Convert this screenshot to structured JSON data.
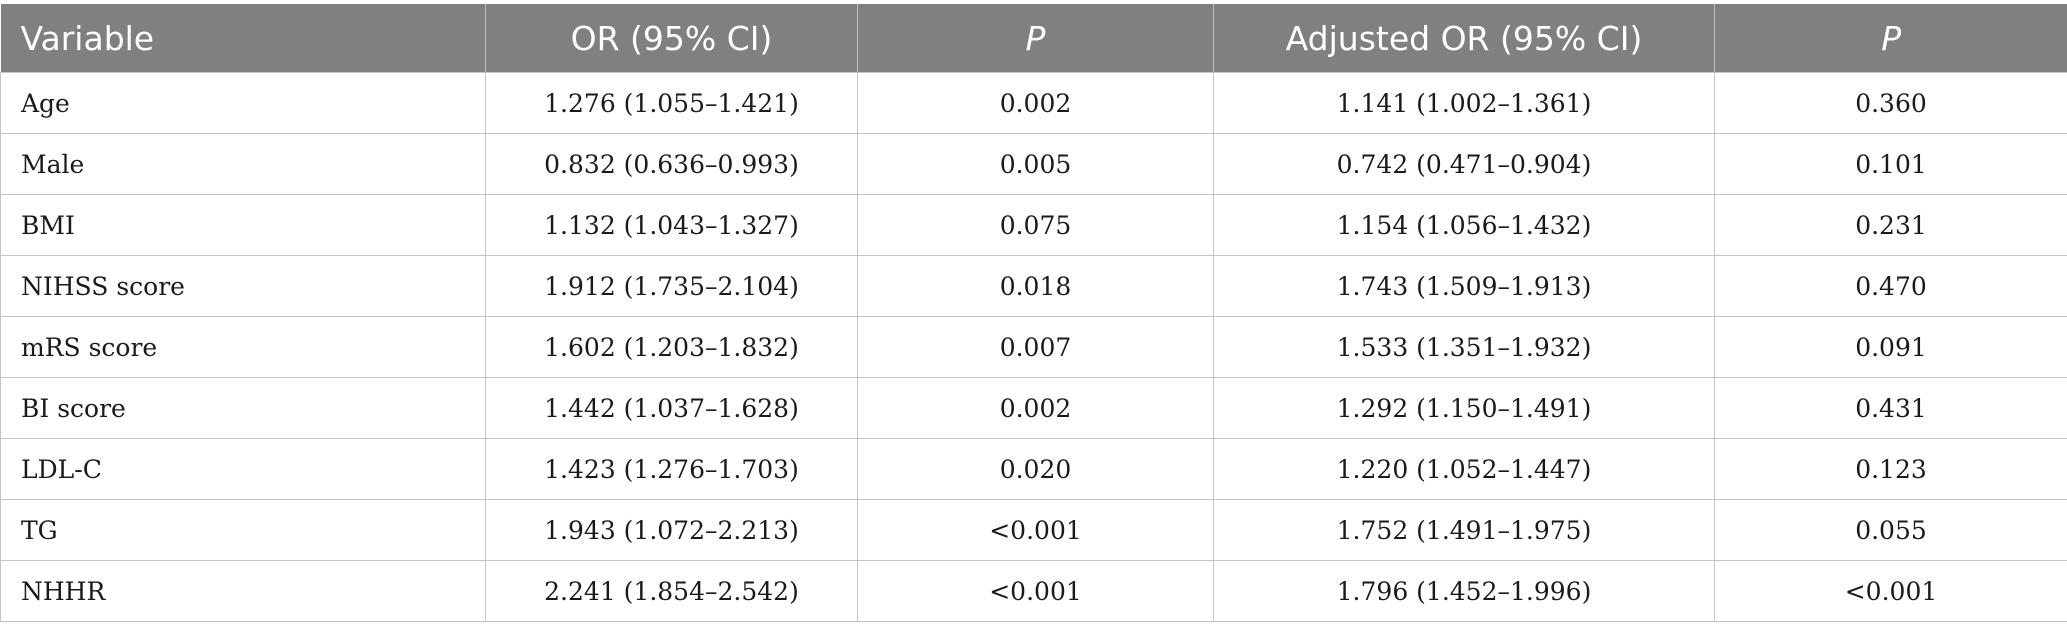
{
  "table": {
    "headers": [
      "Variable",
      "OR (95% CI)",
      "P",
      "Adjusted OR (95% CI)",
      "P"
    ],
    "rows": [
      [
        "Age",
        "1.276 (1.055–1.421)",
        "0.002",
        "1.141 (1.002–1.361)",
        "0.360"
      ],
      [
        "Male",
        "0.832 (0.636–0.993)",
        "0.005",
        "0.742 (0.471–0.904)",
        "0.101"
      ],
      [
        "BMI",
        "1.132 (1.043–1.327)",
        "0.075",
        "1.154 (1.056–1.432)",
        "0.231"
      ],
      [
        "NIHSS score",
        "1.912 (1.735–2.104)",
        "0.018",
        "1.743 (1.509–1.913)",
        "0.470"
      ],
      [
        "mRS score",
        "1.602 (1.203–1.832)",
        "0.007",
        "1.533 (1.351–1.932)",
        "0.091"
      ],
      [
        "BI score",
        "1.442 (1.037–1.628)",
        "0.002",
        "1.292 (1.150–1.491)",
        "0.431"
      ],
      [
        "LDL-C",
        "1.423 (1.276–1.703)",
        "0.020",
        "1.220 (1.052–1.447)",
        "0.123"
      ],
      [
        "TG",
        "1.943 (1.072–2.213)",
        "<0.001",
        "1.752 (1.491–1.975)",
        "0.055"
      ],
      [
        "NHHR",
        "2.241 (1.854–2.542)",
        "<0.001",
        "1.796 (1.452–1.996)",
        "<0.001"
      ]
    ]
  },
  "colors": {
    "header_bg": "#808080",
    "header_text": "#ffffff",
    "grid": "#c4c4c4"
  }
}
